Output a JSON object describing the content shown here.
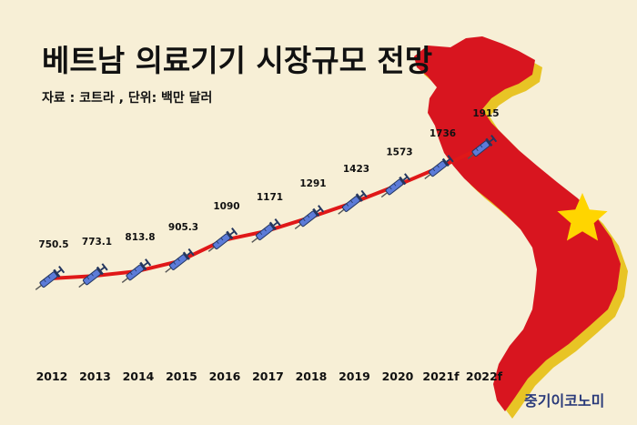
{
  "header": {
    "title": "베트남 의료기기 시장규모 전망",
    "subtitle": "자료 : 코트라 , 단위: 백만 달러"
  },
  "brand": {
    "label": "중기이코노미"
  },
  "colors": {
    "background": "#f7efd6",
    "map_red": "#d8151f",
    "map_yellow": "#e8c425",
    "star": "#ffd500",
    "line": "#e01818",
    "syringe": "#5c7bd8",
    "brand": "#2a3a7a"
  },
  "chart_data": {
    "type": "line",
    "categories": [
      "2012",
      "2013",
      "2014",
      "2015",
      "2016",
      "2017",
      "2018",
      "2019",
      "2020",
      "2021f",
      "2022f"
    ],
    "values": [
      750.5,
      773.1,
      813.8,
      905.3,
      1090,
      1171,
      1291,
      1423,
      1573,
      1736,
      1915
    ],
    "value_labels": [
      "750.5",
      "773.1",
      "813.8",
      "905.3",
      "1090",
      "1171",
      "1291",
      "1423",
      "1573",
      "1736",
      "1915"
    ],
    "title": "베트남 의료기기 시장규모 전망",
    "subtitle": "자료 : 코트라 , 단위: 백만 달러",
    "marker": "syringe-icon",
    "grid": false,
    "legend": "none"
  }
}
